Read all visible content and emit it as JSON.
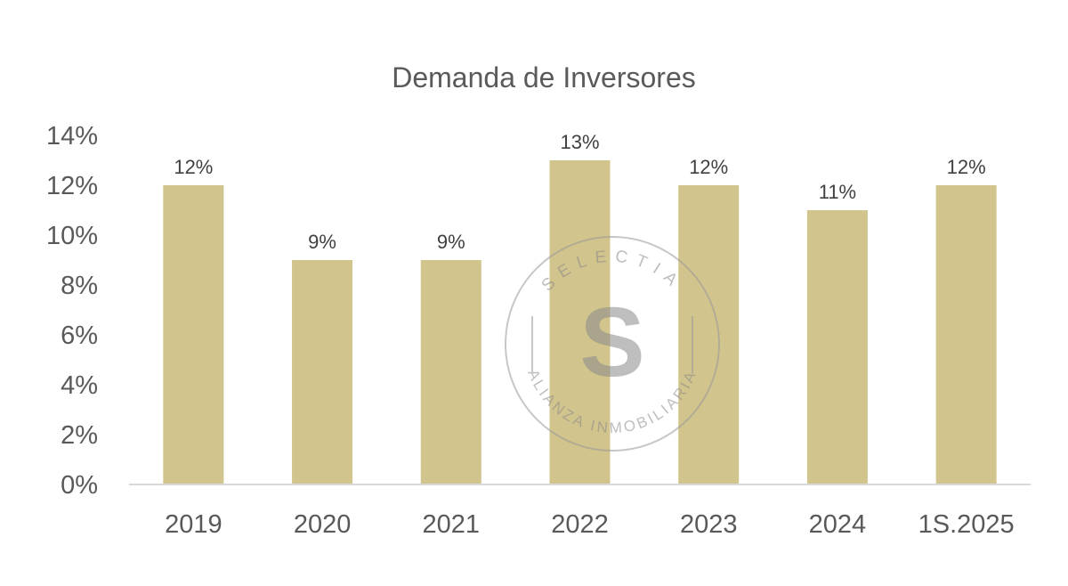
{
  "chart_data": {
    "type": "bar",
    "title": "Demanda de Inversores",
    "categories": [
      "2019",
      "2020",
      "2021",
      "2022",
      "2023",
      "2024",
      "1S.2025"
    ],
    "values": [
      12,
      9,
      9,
      13,
      12,
      11,
      12
    ],
    "data_labels": [
      "12%",
      "9%",
      "9%",
      "13%",
      "12%",
      "11%",
      "12%"
    ],
    "yticks": [
      "0%",
      "2%",
      "4%",
      "6%",
      "8%",
      "10%",
      "12%",
      "14%"
    ],
    "ylim": [
      0,
      14
    ],
    "grid": false,
    "legend": "none",
    "bar_color": "#d1c48d"
  },
  "watermark": {
    "brand": "SELECTIA",
    "tagline": "ALIANZA INMOBILIARIA",
    "monogram": "S"
  }
}
